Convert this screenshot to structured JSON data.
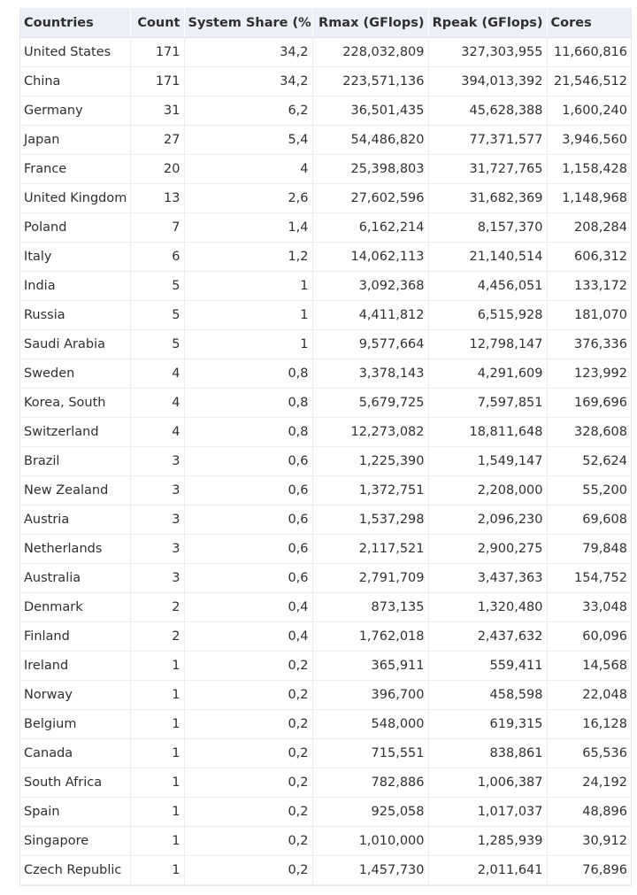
{
  "table": {
    "headers": [
      "Countries",
      "Count",
      "System Share (%)",
      "Rmax (GFlops)",
      "Rpeak (GFlops)",
      "Cores"
    ],
    "rows": [
      [
        "United States",
        "171",
        "34,2",
        "228,032,809",
        "327,303,955",
        "11,660,816"
      ],
      [
        "China",
        "171",
        "34,2",
        "223,571,136",
        "394,013,392",
        "21,546,512"
      ],
      [
        "Germany",
        "31",
        "6,2",
        "36,501,435",
        "45,628,388",
        "1,600,240"
      ],
      [
        "Japan",
        "27",
        "5,4",
        "54,486,820",
        "77,371,577",
        "3,946,560"
      ],
      [
        "France",
        "20",
        "4",
        "25,398,803",
        "31,727,765",
        "1,158,428"
      ],
      [
        "United Kingdom",
        "13",
        "2,6",
        "27,602,596",
        "31,682,369",
        "1,148,968"
      ],
      [
        "Poland",
        "7",
        "1,4",
        "6,162,214",
        "8,157,370",
        "208,284"
      ],
      [
        "Italy",
        "6",
        "1,2",
        "14,062,113",
        "21,140,514",
        "606,312"
      ],
      [
        "India",
        "5",
        "1",
        "3,092,368",
        "4,456,051",
        "133,172"
      ],
      [
        "Russia",
        "5",
        "1",
        "4,411,812",
        "6,515,928",
        "181,070"
      ],
      [
        "Saudi Arabia",
        "5",
        "1",
        "9,577,664",
        "12,798,147",
        "376,336"
      ],
      [
        "Sweden",
        "4",
        "0,8",
        "3,378,143",
        "4,291,609",
        "123,992"
      ],
      [
        "Korea, South",
        "4",
        "0,8",
        "5,679,725",
        "7,597,851",
        "169,696"
      ],
      [
        "Switzerland",
        "4",
        "0,8",
        "12,273,082",
        "18,811,648",
        "328,608"
      ],
      [
        "Brazil",
        "3",
        "0,6",
        "1,225,390",
        "1,549,147",
        "52,624"
      ],
      [
        "New Zealand",
        "3",
        "0,6",
        "1,372,751",
        "2,208,000",
        "55,200"
      ],
      [
        "Austria",
        "3",
        "0,6",
        "1,537,298",
        "2,096,230",
        "69,608"
      ],
      [
        "Netherlands",
        "3",
        "0,6",
        "2,117,521",
        "2,900,275",
        "79,848"
      ],
      [
        "Australia",
        "3",
        "0,6",
        "2,791,709",
        "3,437,363",
        "154,752"
      ],
      [
        "Denmark",
        "2",
        "0,4",
        "873,135",
        "1,320,480",
        "33,048"
      ],
      [
        "Finland",
        "2",
        "0,4",
        "1,762,018",
        "2,437,632",
        "60,096"
      ],
      [
        "Ireland",
        "1",
        "0,2",
        "365,911",
        "559,411",
        "14,568"
      ],
      [
        "Norway",
        "1",
        "0,2",
        "396,700",
        "458,598",
        "22,048"
      ],
      [
        "Belgium",
        "1",
        "0,2",
        "548,000",
        "619,315",
        "16,128"
      ],
      [
        "Canada",
        "1",
        "0,2",
        "715,551",
        "838,861",
        "65,536"
      ],
      [
        "South Africa",
        "1",
        "0,2",
        "782,886",
        "1,006,387",
        "24,192"
      ],
      [
        "Spain",
        "1",
        "0,2",
        "925,058",
        "1,017,037",
        "48,896"
      ],
      [
        "Singapore",
        "1",
        "0,2",
        "1,010,000",
        "1,285,939",
        "30,912"
      ],
      [
        "Czech Republic",
        "1",
        "0,2",
        "1,457,730",
        "2,011,641",
        "76,896"
      ]
    ]
  }
}
